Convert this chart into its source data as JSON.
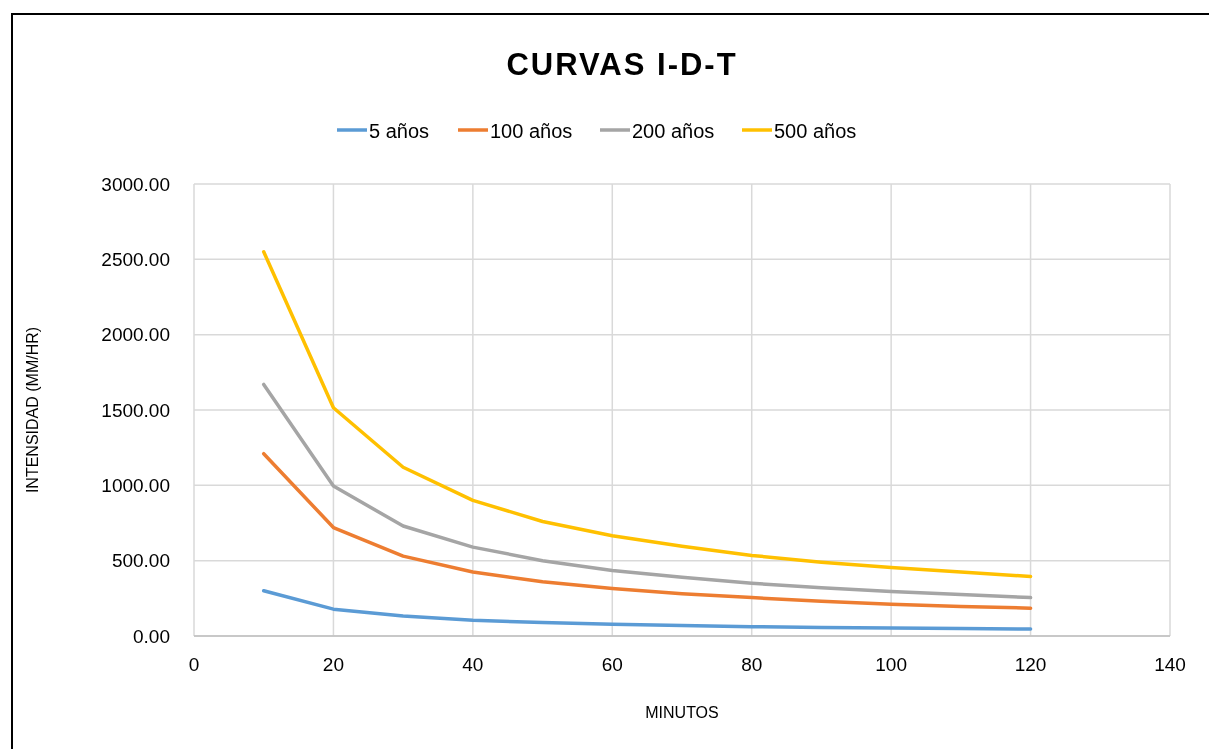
{
  "chart_data": {
    "type": "line",
    "title": "CURVAS I-D-T",
    "xlabel": "MINUTOS",
    "ylabel": "INTENSIDAD (MM/HR)",
    "x": [
      10,
      20,
      30,
      40,
      50,
      60,
      70,
      80,
      90,
      100,
      110,
      120
    ],
    "series": [
      {
        "name": "5 años",
        "color": "#5b9bd5",
        "values": [
          300,
          178,
          132,
          105,
          89,
          78,
          69,
          62,
          57,
          53,
          49,
          46
        ]
      },
      {
        "name": "100 años",
        "color": "#ed7d31",
        "values": [
          1210,
          720,
          530,
          425,
          360,
          315,
          280,
          255,
          230,
          210,
          195,
          185
        ]
      },
      {
        "name": "200 años",
        "color": "#a5a5a5",
        "values": [
          1670,
          995,
          730,
          590,
          500,
          435,
          390,
          350,
          320,
          295,
          275,
          255
        ]
      },
      {
        "name": "500 años",
        "color": "#ffc000",
        "values": [
          2550,
          1515,
          1120,
          900,
          760,
          665,
          595,
          535,
          490,
          455,
          425,
          395
        ]
      }
    ],
    "xlim": [
      0,
      140
    ],
    "xticks": [
      0,
      20,
      40,
      60,
      80,
      100,
      120,
      140
    ],
    "ylim": [
      0,
      3000
    ],
    "yticks": [
      {
        "value": 0,
        "label": "0.00"
      },
      {
        "value": 500,
        "label": "500.00"
      },
      {
        "value": 1000,
        "label": "1000.00"
      },
      {
        "value": 1500,
        "label": "1500.00"
      },
      {
        "value": 2000,
        "label": "2000.00"
      },
      {
        "value": 2500,
        "label": "2500.00"
      },
      {
        "value": 3000,
        "label": "3000.00"
      }
    ],
    "grid": true,
    "legend": "top",
    "marker": "none",
    "line_style": "solid"
  }
}
